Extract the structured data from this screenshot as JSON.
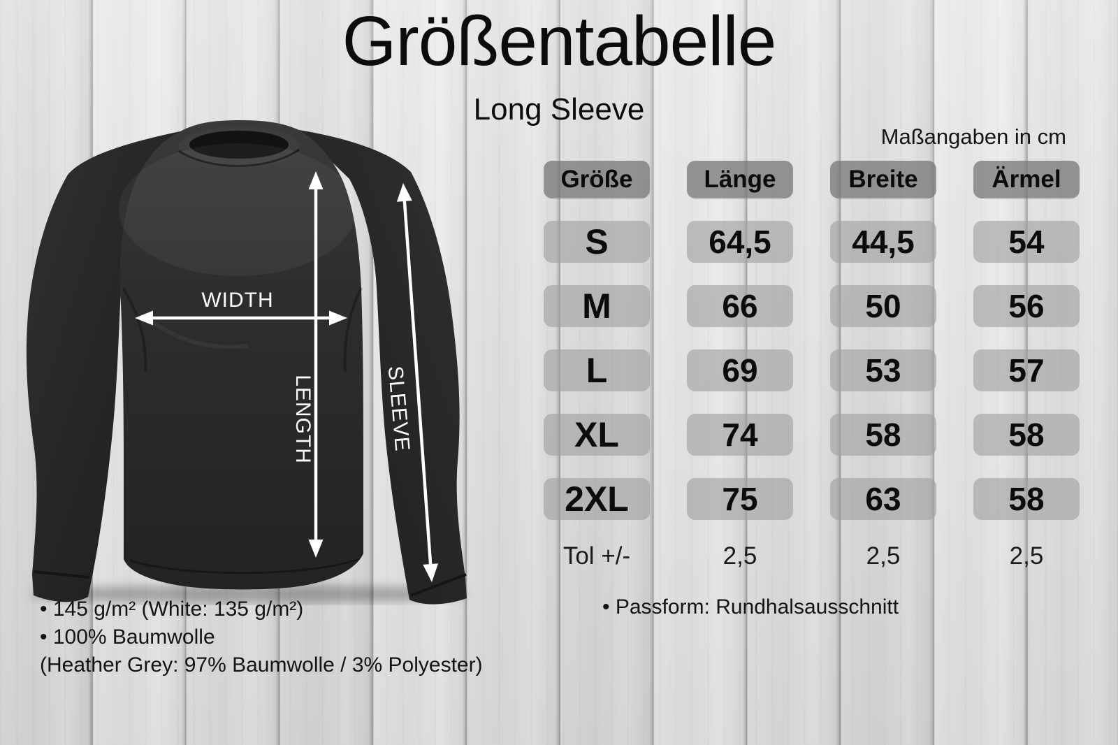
{
  "title": "Größentabelle",
  "subtitle": "Long Sleeve",
  "units_note": "Maßangaben in cm",
  "diagram": {
    "width_label": "WIDTH",
    "length_label": "LENGTH",
    "sleeve_label": "SLEEVE"
  },
  "table": {
    "headers": [
      "Größe",
      "Länge",
      "Breite",
      "Ärmel"
    ],
    "rows": [
      [
        "S",
        "64,5",
        "44,5",
        "54"
      ],
      [
        "M",
        "66",
        "50",
        "56"
      ],
      [
        "L",
        "69",
        "53",
        "57"
      ],
      [
        "XL",
        "74",
        "58",
        "58"
      ],
      [
        "2XL",
        "75",
        "63",
        "58"
      ],
      [
        "Tol +/-",
        "2,5",
        "2,5",
        "2,5"
      ]
    ]
  },
  "chart_data": {
    "type": "table",
    "title": "Größentabelle",
    "subtitle": "Long Sleeve",
    "units": "cm",
    "columns": [
      "Größe",
      "Länge",
      "Breite",
      "Ärmel"
    ],
    "rows": [
      [
        "S",
        64.5,
        44.5,
        54
      ],
      [
        "M",
        66,
        50,
        56
      ],
      [
        "L",
        69,
        53,
        57
      ],
      [
        "XL",
        74,
        58,
        58
      ],
      [
        "2XL",
        75,
        63,
        58
      ]
    ],
    "tolerance_row": [
      "Tol +/-",
      2.5,
      2.5,
      2.5
    ]
  },
  "footnotes_left": [
    "• 145 g/m² (White: 135 g/m²)",
    "• 100% Baumwolle",
    "(Heather Grey: 97% Baumwolle / 3% Polyester)"
  ],
  "footnote_right": "•  Passform: Rundhalsausschnitt",
  "colors": {
    "background_wood": "#e3e3e3",
    "header_cell": "#969696",
    "data_cell": "#bababa",
    "text": "#111111",
    "shirt": "#2b2b2a",
    "arrows": "#ffffff"
  }
}
